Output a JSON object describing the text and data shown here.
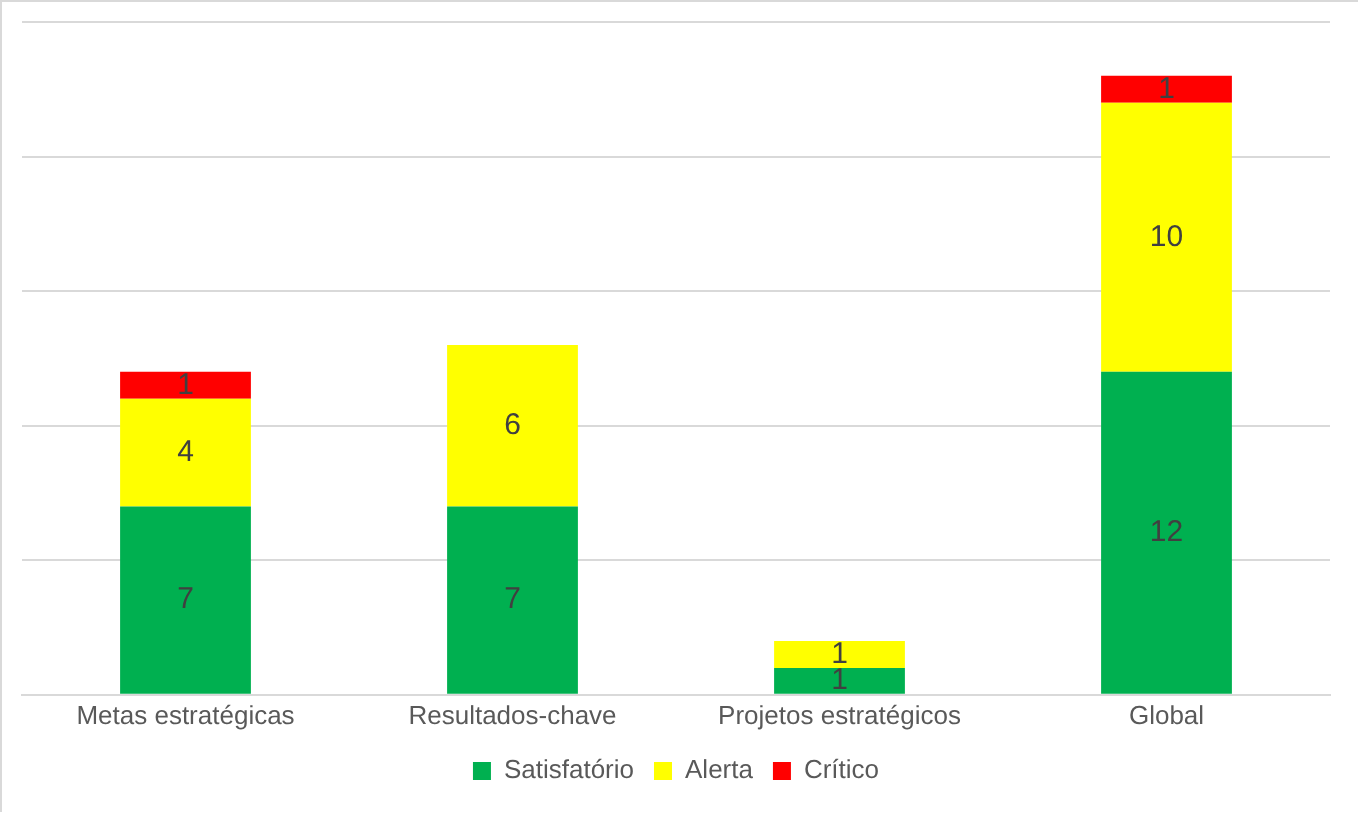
{
  "chart_data": {
    "type": "bar",
    "stacked": true,
    "categories": [
      "Metas estratégicas",
      "Resultados-chave",
      "Projetos estratégicos",
      "Global"
    ],
    "series": [
      {
        "name": "Satisfatório",
        "color": "#00b050",
        "values": [
          7,
          7,
          1,
          12
        ]
      },
      {
        "name": "Alerta",
        "color": "#ffff00",
        "values": [
          4,
          6,
          1,
          10
        ]
      },
      {
        "name": "Crítico",
        "color": "#ff0000",
        "values": [
          1,
          null,
          null,
          1
        ]
      }
    ],
    "ylim": [
      0,
      25
    ],
    "yticks": [
      {
        "value": 0,
        "label": null
      },
      {
        "value": 5,
        "label": null
      },
      {
        "value": 10,
        "label": null
      },
      {
        "value": 15,
        "label": null
      },
      {
        "value": 20,
        "label": null
      },
      {
        "value": 25,
        "label": null
      }
    ],
    "tick_labels": "x",
    "grid": "y",
    "legend": "bottom",
    "data_labels": true
  }
}
